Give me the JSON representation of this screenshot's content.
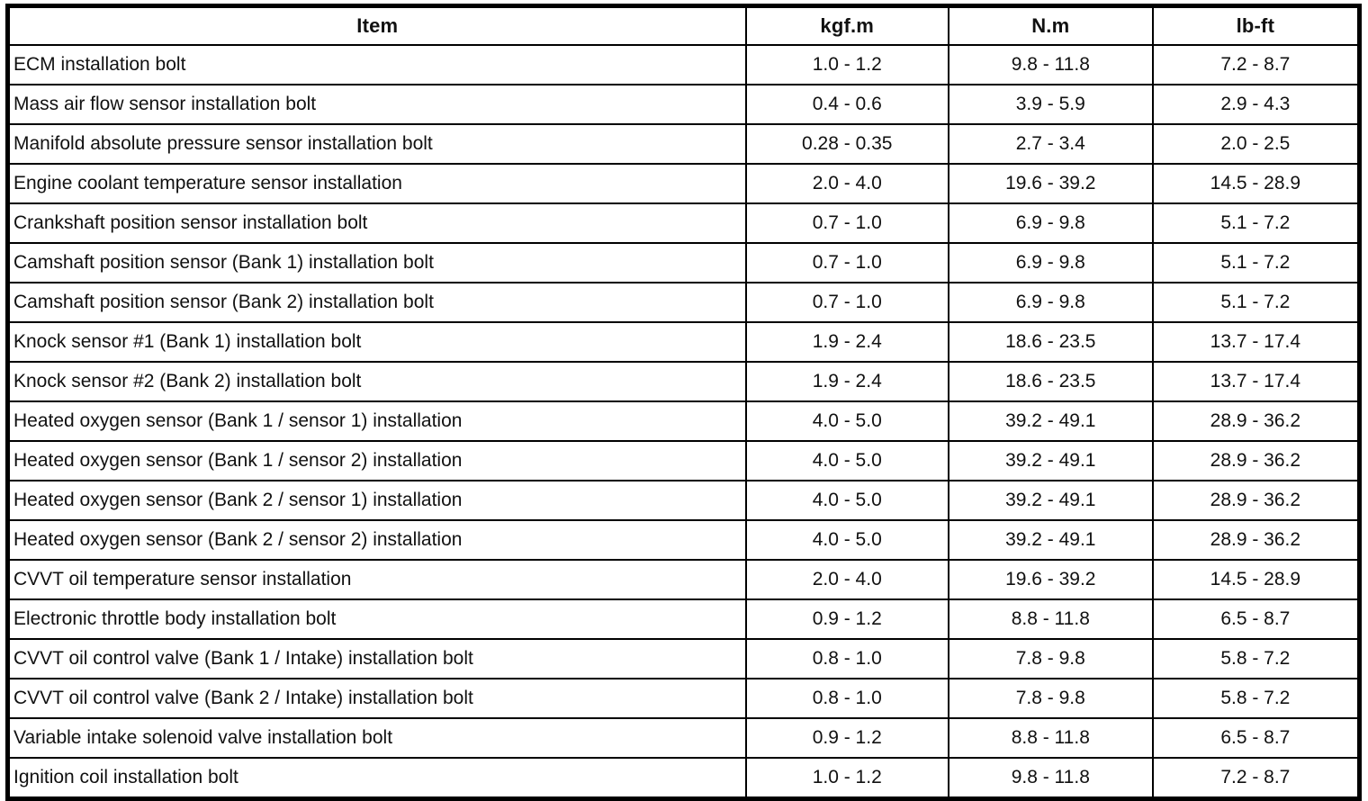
{
  "table": {
    "columns": [
      {
        "key": "item",
        "label": "Item"
      },
      {
        "key": "kgfm",
        "label": "kgf.m"
      },
      {
        "key": "nm",
        "label": "N.m"
      },
      {
        "key": "lbft",
        "label": "lb-ft"
      }
    ],
    "rows": [
      {
        "item": "ECM installation bolt",
        "kgfm": "1.0 - 1.2",
        "nm": "9.8 - 11.8",
        "lbft": "7.2 - 8.7"
      },
      {
        "item": "Mass air flow sensor installation bolt",
        "kgfm": "0.4 - 0.6",
        "nm": "3.9 - 5.9",
        "lbft": "2.9 - 4.3"
      },
      {
        "item": "Manifold absolute pressure sensor installation bolt",
        "kgfm": "0.28 - 0.35",
        "nm": "2.7 - 3.4",
        "lbft": "2.0 - 2.5"
      },
      {
        "item": "Engine coolant temperature sensor installation",
        "kgfm": "2.0 - 4.0",
        "nm": "19.6 - 39.2",
        "lbft": "14.5 - 28.9"
      },
      {
        "item": "Crankshaft position sensor installation bolt",
        "kgfm": "0.7 - 1.0",
        "nm": "6.9 - 9.8",
        "lbft": "5.1 - 7.2"
      },
      {
        "item": "Camshaft position sensor (Bank 1) installation bolt",
        "kgfm": "0.7 - 1.0",
        "nm": "6.9 - 9.8",
        "lbft": "5.1 - 7.2"
      },
      {
        "item": "Camshaft position sensor (Bank 2) installation bolt",
        "kgfm": "0.7 - 1.0",
        "nm": "6.9 - 9.8",
        "lbft": "5.1 - 7.2"
      },
      {
        "item": "Knock sensor #1 (Bank 1) installation bolt",
        "kgfm": "1.9 - 2.4",
        "nm": "18.6 - 23.5",
        "lbft": "13.7 - 17.4"
      },
      {
        "item": "Knock sensor #2 (Bank 2) installation bolt",
        "kgfm": "1.9 - 2.4",
        "nm": "18.6 - 23.5",
        "lbft": "13.7 - 17.4"
      },
      {
        "item": "Heated oxygen sensor (Bank 1 / sensor 1) installation",
        "kgfm": "4.0 - 5.0",
        "nm": "39.2 - 49.1",
        "lbft": "28.9 - 36.2"
      },
      {
        "item": "Heated oxygen sensor (Bank 1 / sensor 2) installation",
        "kgfm": "4.0 - 5.0",
        "nm": "39.2 - 49.1",
        "lbft": "28.9 - 36.2"
      },
      {
        "item": "Heated oxygen sensor (Bank 2 / sensor 1) installation",
        "kgfm": "4.0 - 5.0",
        "nm": "39.2 - 49.1",
        "lbft": "28.9 - 36.2"
      },
      {
        "item": "Heated oxygen sensor (Bank 2 / sensor 2) installation",
        "kgfm": "4.0 - 5.0",
        "nm": "39.2 - 49.1",
        "lbft": "28.9 - 36.2"
      },
      {
        "item": "CVVT oil temperature sensor installation",
        "kgfm": "2.0 - 4.0",
        "nm": "19.6 - 39.2",
        "lbft": "14.5 - 28.9"
      },
      {
        "item": "Electronic throttle body installation bolt",
        "kgfm": "0.9 - 1.2",
        "nm": "8.8 - 11.8",
        "lbft": "6.5 - 8.7"
      },
      {
        "item": "CVVT oil control valve (Bank 1 / Intake) installation bolt",
        "kgfm": "0.8 - 1.0",
        "nm": "7.8 - 9.8",
        "lbft": "5.8 - 7.2"
      },
      {
        "item": "CVVT oil control valve (Bank 2 / Intake) installation bolt",
        "kgfm": "0.8 - 1.0",
        "nm": "7.8 - 9.8",
        "lbft": "5.8 - 7.2"
      },
      {
        "item": "Variable intake solenoid valve installation bolt",
        "kgfm": "0.9 - 1.2",
        "nm": "8.8 - 11.8",
        "lbft": "6.5 - 8.7"
      },
      {
        "item": "Ignition coil installation bolt",
        "kgfm": "1.0 - 1.2",
        "nm": "9.8 - 11.8",
        "lbft": "7.2 - 8.7"
      }
    ],
    "colors": {
      "border": "#000000",
      "text": "#111111",
      "background": "#ffffff"
    }
  }
}
